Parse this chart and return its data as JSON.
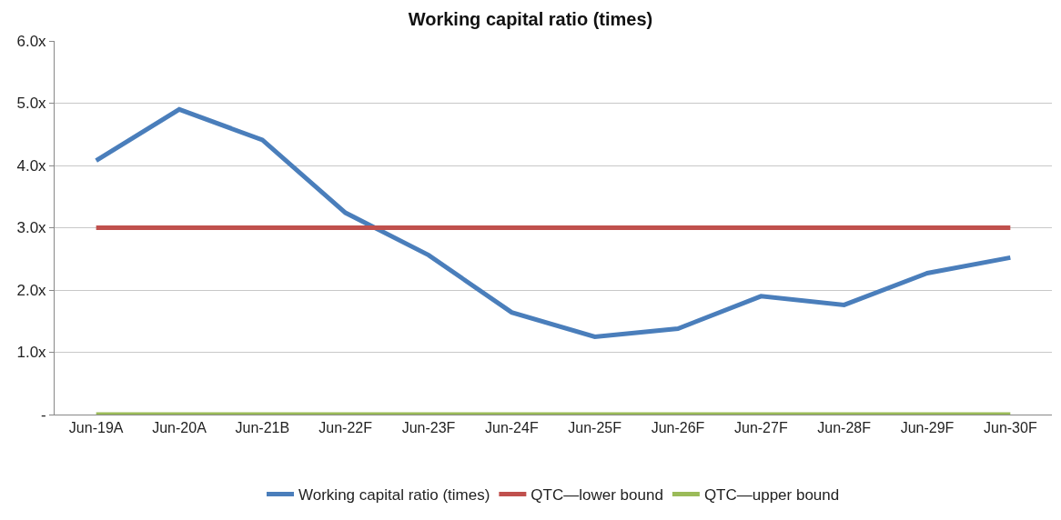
{
  "chart_data": {
    "type": "line",
    "title": "Working capital ratio (times)",
    "categories": [
      "Jun-19A",
      "Jun-20A",
      "Jun-21B",
      "Jun-22F",
      "Jun-23F",
      "Jun-24F",
      "Jun-25F",
      "Jun-26F",
      "Jun-27F",
      "Jun-28F",
      "Jun-29F",
      "Jun-30F"
    ],
    "series": [
      {
        "name": "Working capital ratio (times)",
        "color": "#4a7ebb",
        "values": [
          4.08,
          4.9,
          4.41,
          3.24,
          2.56,
          1.64,
          1.25,
          1.38,
          1.9,
          1.76,
          2.27,
          2.52
        ]
      },
      {
        "name": "QTC—lower bound",
        "color": "#c0504d",
        "values": [
          3,
          3,
          3,
          3,
          3,
          3,
          3,
          3,
          3,
          3,
          3,
          3
        ]
      },
      {
        "name": "QTC—upper bound",
        "color": "#9bbb59",
        "values": [
          0,
          0,
          0,
          0,
          0,
          0,
          0,
          0,
          0,
          0,
          0,
          0
        ]
      }
    ],
    "ylim": [
      0,
      6
    ],
    "yticks": [
      {
        "value": 0,
        "label": "-"
      },
      {
        "value": 1,
        "label": "1.0x"
      },
      {
        "value": 2,
        "label": "2.0x"
      },
      {
        "value": 3,
        "label": "3.0x"
      },
      {
        "value": 4,
        "label": "4.0x"
      },
      {
        "value": 5,
        "label": "5.0x"
      },
      {
        "value": 6,
        "label": "6.0x"
      }
    ],
    "grid": "y",
    "legend": "bottom",
    "marker": "none",
    "line_style": "solid"
  }
}
